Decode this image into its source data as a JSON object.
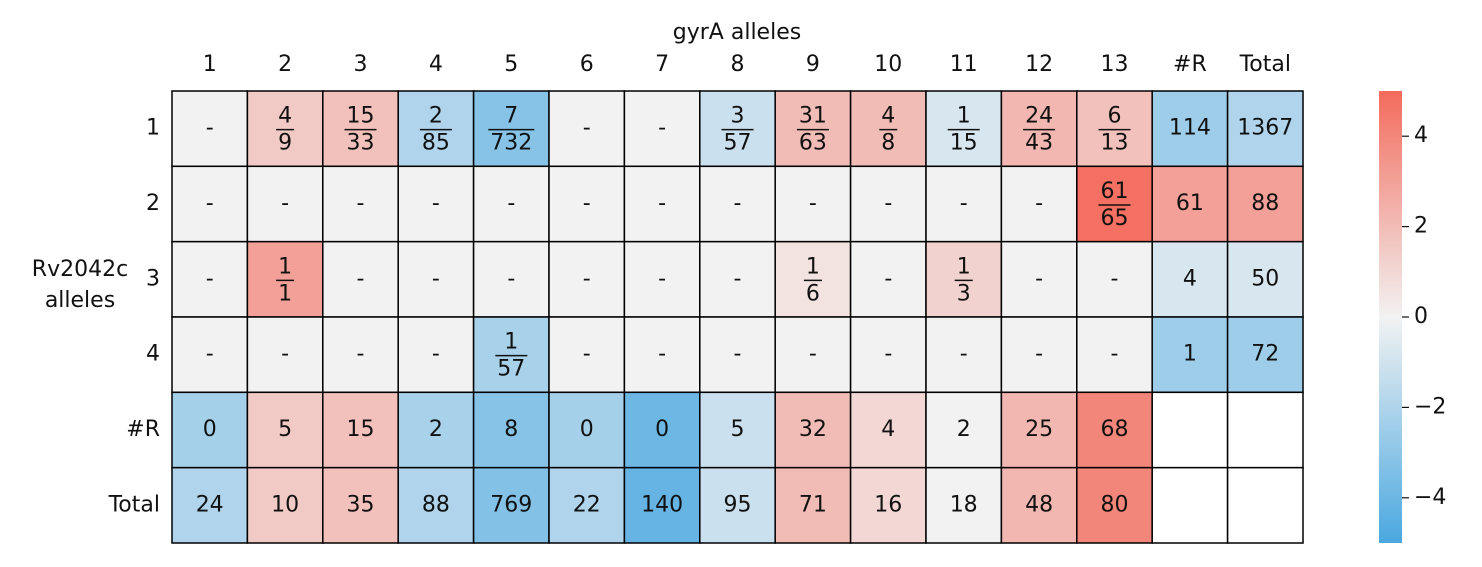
{
  "chart_data": {
    "type": "heatmap",
    "title": "gyrA alleles",
    "y_label": [
      "Rv2042c",
      "alleles"
    ],
    "x_categories": [
      "1",
      "2",
      "3",
      "4",
      "5",
      "6",
      "7",
      "8",
      "9",
      "10",
      "11",
      "12",
      "13",
      "#R",
      "Total"
    ],
    "y_categories": [
      "1",
      "2",
      "3",
      "4",
      "#R",
      "Total"
    ],
    "values": [
      [
        0,
        1.5,
        1.8,
        -2,
        -3.2,
        0,
        0,
        -1.2,
        2,
        2,
        -0.8,
        2.2,
        1.8,
        -2.5,
        -2
      ],
      [
        0,
        0,
        0,
        0,
        0,
        0,
        0,
        0,
        0,
        0,
        0,
        0,
        4.8,
        3,
        3
      ],
      [
        0,
        3,
        0,
        0,
        0,
        0,
        0,
        0,
        0.6,
        0,
        1.2,
        0,
        0,
        -0.8,
        -0.8
      ],
      [
        0,
        0,
        0,
        0,
        -2.2,
        0,
        0,
        0,
        0,
        0,
        0,
        0,
        0,
        -2.5,
        -2.5
      ],
      [
        -2.3,
        1.5,
        1.8,
        -2.2,
        -3.2,
        -2.3,
        -4,
        -1.2,
        2,
        1,
        0,
        2.2,
        4,
        null,
        null
      ],
      [
        -2,
        1.5,
        1.8,
        -2,
        -3.3,
        -2,
        -4.2,
        -1.2,
        2,
        1,
        0,
        2.2,
        4,
        null,
        null
      ]
    ],
    "cell_labels": [
      [
        "-",
        {
          "num": 4,
          "den": 9
        },
        {
          "num": 15,
          "den": 33
        },
        {
          "num": 2,
          "den": 85
        },
        {
          "num": 7,
          "den": 732
        },
        "-",
        "-",
        {
          "num": 3,
          "den": 57
        },
        {
          "num": 31,
          "den": 63
        },
        {
          "num": 4,
          "den": 8
        },
        {
          "num": 1,
          "den": 15
        },
        {
          "num": 24,
          "den": 43
        },
        {
          "num": 6,
          "den": 13
        },
        114,
        1367
      ],
      [
        "-",
        "-",
        "-",
        "-",
        "-",
        "-",
        "-",
        "-",
        "-",
        "-",
        "-",
        "-",
        {
          "num": 61,
          "den": 65
        },
        61,
        88
      ],
      [
        "-",
        {
          "num": 1,
          "den": 1
        },
        "-",
        "-",
        "-",
        "-",
        "-",
        "-",
        {
          "num": 1,
          "den": 6
        },
        "-",
        {
          "num": 1,
          "den": 3
        },
        "-",
        "-",
        4,
        50
      ],
      [
        "-",
        "-",
        "-",
        "-",
        {
          "num": 1,
          "den": 57
        },
        "-",
        "-",
        "-",
        "-",
        "-",
        "-",
        "-",
        "-",
        1,
        72
      ],
      [
        0,
        5,
        15,
        2,
        8,
        0,
        0,
        5,
        32,
        4,
        2,
        25,
        68,
        null,
        null
      ],
      [
        24,
        10,
        35,
        88,
        769,
        22,
        140,
        95,
        71,
        16,
        18,
        48,
        80,
        null,
        null
      ]
    ],
    "clim": [
      -5,
      5
    ],
    "cticks": [
      {
        "value": -4,
        "label": "−4"
      },
      {
        "value": -2,
        "label": "−2"
      },
      0,
      2,
      4
    ],
    "colormap": [
      "#4aa8e0",
      "#f2f2f2",
      "#f36b5c"
    ]
  }
}
